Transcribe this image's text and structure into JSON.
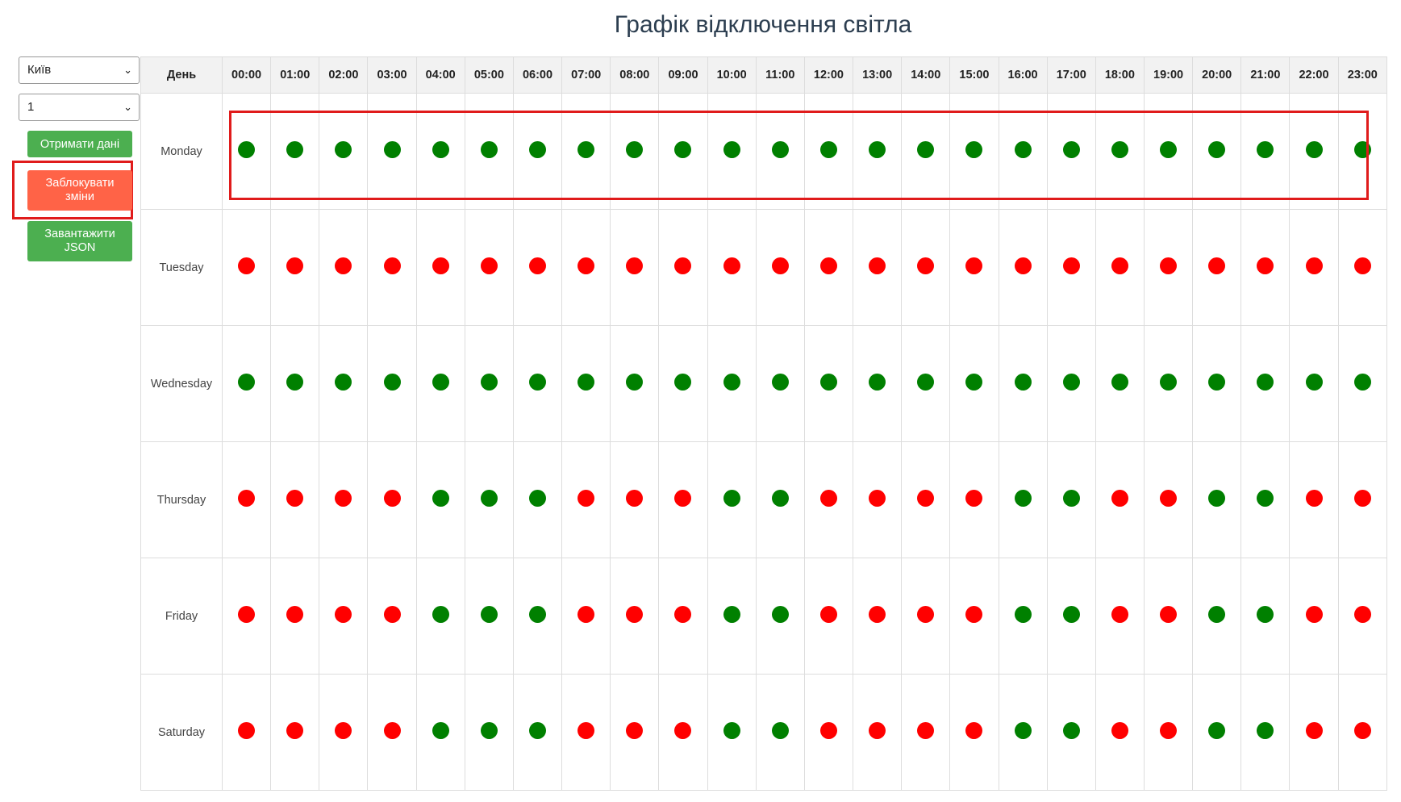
{
  "page": {
    "title": "Графік відключення світла"
  },
  "sidebar": {
    "city_select": {
      "value": "Київ"
    },
    "group_select": {
      "value": "1"
    },
    "get_data_label": "Отримати дані",
    "lock_changes_label": "Заблокувати зміни",
    "download_json_label": "Завантажити JSON"
  },
  "colors": {
    "on": "#008000",
    "off": "#ff0000",
    "highlight": "#e01b1b"
  },
  "schedule": {
    "day_header": "День",
    "hours": [
      "00:00",
      "01:00",
      "02:00",
      "03:00",
      "04:00",
      "05:00",
      "06:00",
      "07:00",
      "08:00",
      "09:00",
      "10:00",
      "11:00",
      "12:00",
      "13:00",
      "14:00",
      "15:00",
      "16:00",
      "17:00",
      "18:00",
      "19:00",
      "20:00",
      "21:00",
      "22:00",
      "23:00"
    ],
    "rows": [
      {
        "day": "Monday",
        "status": [
          "on",
          "on",
          "on",
          "on",
          "on",
          "on",
          "on",
          "on",
          "on",
          "on",
          "on",
          "on",
          "on",
          "on",
          "on",
          "on",
          "on",
          "on",
          "on",
          "on",
          "on",
          "on",
          "on",
          "on"
        ]
      },
      {
        "day": "Tuesday",
        "status": [
          "off",
          "off",
          "off",
          "off",
          "off",
          "off",
          "off",
          "off",
          "off",
          "off",
          "off",
          "off",
          "off",
          "off",
          "off",
          "off",
          "off",
          "off",
          "off",
          "off",
          "off",
          "off",
          "off",
          "off"
        ]
      },
      {
        "day": "Wednesday",
        "status": [
          "on",
          "on",
          "on",
          "on",
          "on",
          "on",
          "on",
          "on",
          "on",
          "on",
          "on",
          "on",
          "on",
          "on",
          "on",
          "on",
          "on",
          "on",
          "on",
          "on",
          "on",
          "on",
          "on",
          "on"
        ]
      },
      {
        "day": "Thursday",
        "status": [
          "off",
          "off",
          "off",
          "off",
          "on",
          "on",
          "on",
          "off",
          "off",
          "off",
          "on",
          "on",
          "off",
          "off",
          "off",
          "off",
          "on",
          "on",
          "off",
          "off",
          "on",
          "on",
          "off",
          "off"
        ]
      },
      {
        "day": "Friday",
        "status": [
          "off",
          "off",
          "off",
          "off",
          "on",
          "on",
          "on",
          "off",
          "off",
          "off",
          "on",
          "on",
          "off",
          "off",
          "off",
          "off",
          "on",
          "on",
          "off",
          "off",
          "on",
          "on",
          "off",
          "off"
        ]
      },
      {
        "day": "Saturday",
        "status": [
          "off",
          "off",
          "off",
          "off",
          "on",
          "on",
          "on",
          "off",
          "off",
          "off",
          "on",
          "on",
          "off",
          "off",
          "off",
          "off",
          "on",
          "on",
          "off",
          "off",
          "on",
          "on",
          "off",
          "off"
        ]
      }
    ]
  }
}
